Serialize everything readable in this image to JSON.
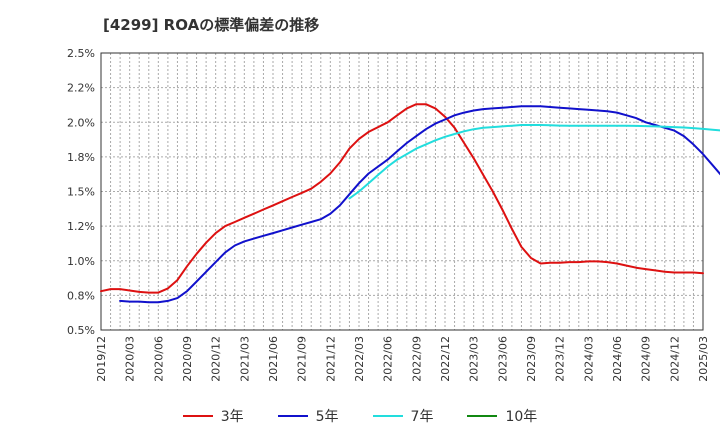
{
  "chart_data": {
    "type": "line",
    "title": "[4299]  ROAの標準偏差の推移",
    "xlabel": "",
    "ylabel": "",
    "ylim": [
      0.5,
      2.5
    ],
    "y_ticks": [
      0.5,
      0.75,
      1.0,
      1.25,
      1.5,
      1.75,
      2.0,
      2.25,
      2.5
    ],
    "y_tick_labels": [
      "0.5%",
      "0.8%",
      "1.0%",
      "1.2%",
      "1.5%",
      "1.8%",
      "2.0%",
      "2.2%",
      "2.5%"
    ],
    "x_tick_labels": [
      "2019/12",
      "2020/03",
      "2020/06",
      "2020/09",
      "2020/12",
      "2021/03",
      "2021/06",
      "2021/09",
      "2021/12",
      "2022/03",
      "2022/06",
      "2022/09",
      "2022/12",
      "2023/03",
      "2023/06",
      "2023/09",
      "2023/12",
      "2024/03",
      "2024/06",
      "2024/09",
      "2024/12",
      "2025/03"
    ],
    "x_start": "2019/12",
    "x_end": "2025/03",
    "grid": true,
    "legend_position": "bottom",
    "series": [
      {
        "name": "3年",
        "color": "#dd1111",
        "start": "2019/12",
        "values": [
          0.78,
          0.795,
          0.795,
          0.785,
          0.775,
          0.77,
          0.77,
          0.8,
          0.86,
          0.96,
          1.05,
          1.13,
          1.2,
          1.25,
          1.28,
          1.31,
          1.34,
          1.37,
          1.4,
          1.43,
          1.46,
          1.49,
          1.52,
          1.57,
          1.63,
          1.71,
          1.81,
          1.88,
          1.93,
          1.965,
          2.0,
          2.05,
          2.1,
          2.13,
          2.13,
          2.1,
          2.04,
          1.96,
          1.85,
          1.74,
          1.62,
          1.5,
          1.37,
          1.23,
          1.1,
          1.02,
          0.98,
          0.985,
          0.985,
          0.99,
          0.99,
          0.995,
          0.995,
          0.99,
          0.98,
          0.965,
          0.95,
          0.94,
          0.93,
          0.92,
          0.915,
          0.915,
          0.915,
          0.91
        ]
      },
      {
        "name": "5年",
        "color": "#1111cc",
        "start": "2020/02",
        "values": [
          0.71,
          0.705,
          0.705,
          0.7,
          0.7,
          0.71,
          0.73,
          0.78,
          0.85,
          0.92,
          0.99,
          1.06,
          1.11,
          1.14,
          1.16,
          1.18,
          1.2,
          1.22,
          1.24,
          1.26,
          1.28,
          1.3,
          1.34,
          1.4,
          1.48,
          1.56,
          1.63,
          1.68,
          1.73,
          1.79,
          1.85,
          1.9,
          1.95,
          1.99,
          2.02,
          2.05,
          2.07,
          2.085,
          2.095,
          2.1,
          2.105,
          2.11,
          2.115,
          2.115,
          2.115,
          2.11,
          2.105,
          2.1,
          2.095,
          2.09,
          2.085,
          2.08,
          2.07,
          2.05,
          2.03,
          2.0,
          1.98,
          1.96,
          1.94,
          1.9,
          1.84,
          1.77,
          1.69,
          1.61,
          1.51
        ]
      },
      {
        "name": "7年",
        "color": "#22dddd",
        "start": "2022/02",
        "values": [
          1.45,
          1.5,
          1.56,
          1.62,
          1.68,
          1.73,
          1.77,
          1.81,
          1.84,
          1.87,
          1.895,
          1.915,
          1.935,
          1.95,
          1.96,
          1.965,
          1.97,
          1.975,
          1.98,
          1.98,
          1.98,
          1.978,
          1.976,
          1.975,
          1.975,
          1.975,
          1.975,
          1.975,
          1.975,
          1.975,
          1.974,
          1.972,
          1.97,
          1.968,
          1.965,
          1.962,
          1.958,
          1.952,
          1.946,
          1.94,
          1.93
        ]
      },
      {
        "name": "10年",
        "color": "#118811",
        "start": "2024/12",
        "values": []
      }
    ]
  }
}
